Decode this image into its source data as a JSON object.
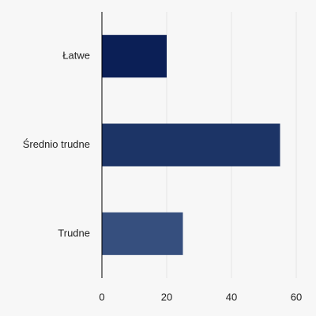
{
  "chart_data": {
    "type": "hbar",
    "categories": [
      "Łatwe",
      "Średnio trudne",
      "Trudne"
    ],
    "values": [
      20,
      55,
      25
    ],
    "colors": [
      "#0b1f56",
      "#1c3466",
      "#364f7e"
    ],
    "xlim": [
      0,
      60
    ],
    "xticks": [
      0,
      20,
      40,
      60
    ],
    "grid": true
  }
}
